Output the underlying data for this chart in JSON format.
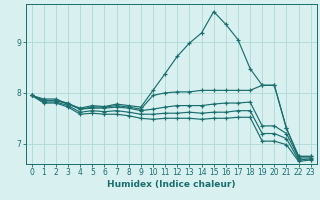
{
  "xlabel": "Humidex (Indice chaleur)",
  "bg_color": "#d8f0f0",
  "grid_color": "#b0d8d8",
  "line_color": "#1a6e6e",
  "xlim": [
    -0.5,
    23.5
  ],
  "ylim": [
    6.6,
    9.75
  ],
  "yticks": [
    7,
    8,
    9
  ],
  "xticks": [
    0,
    1,
    2,
    3,
    4,
    5,
    6,
    7,
    8,
    9,
    10,
    11,
    12,
    13,
    14,
    15,
    16,
    17,
    18,
    19,
    20,
    21,
    22,
    23
  ],
  "lines": [
    {
      "x": [
        0,
        1,
        2,
        3,
        4,
        5,
        6,
        7,
        8,
        9,
        10,
        11,
        12,
        13,
        14,
        15,
        16,
        17,
        18,
        19,
        20,
        21,
        22,
        23
      ],
      "y": [
        7.95,
        7.88,
        7.88,
        7.78,
        7.7,
        7.75,
        7.73,
        7.78,
        7.75,
        7.72,
        8.05,
        8.38,
        8.72,
        8.98,
        9.18,
        9.6,
        9.35,
        9.05,
        8.48,
        8.15,
        8.15,
        7.3,
        6.75,
        6.75
      ]
    },
    {
      "x": [
        0,
        1,
        2,
        3,
        4,
        5,
        6,
        7,
        8,
        9,
        10,
        11,
        12,
        13,
        14,
        15,
        16,
        17,
        18,
        19,
        20,
        21,
        22,
        23
      ],
      "y": [
        7.95,
        7.85,
        7.85,
        7.78,
        7.68,
        7.72,
        7.72,
        7.75,
        7.72,
        7.68,
        7.95,
        8.0,
        8.02,
        8.02,
        8.05,
        8.05,
        8.05,
        8.05,
        8.05,
        8.15,
        8.15,
        7.3,
        6.75,
        6.75
      ]
    },
    {
      "x": [
        0,
        1,
        2,
        3,
        4,
        5,
        6,
        7,
        8,
        9,
        10,
        11,
        12,
        13,
        14,
        15,
        16,
        17,
        18,
        19,
        20,
        21,
        22,
        23
      ],
      "y": [
        7.95,
        7.85,
        7.85,
        7.8,
        7.68,
        7.7,
        7.7,
        7.72,
        7.7,
        7.65,
        7.68,
        7.72,
        7.75,
        7.75,
        7.75,
        7.78,
        7.8,
        7.8,
        7.82,
        7.35,
        7.35,
        7.2,
        6.72,
        6.72
      ]
    },
    {
      "x": [
        0,
        1,
        2,
        3,
        4,
        5,
        6,
        7,
        8,
        9,
        10,
        11,
        12,
        13,
        14,
        15,
        16,
        17,
        18,
        19,
        20,
        21,
        22,
        23
      ],
      "y": [
        7.95,
        7.82,
        7.82,
        7.75,
        7.62,
        7.65,
        7.63,
        7.65,
        7.62,
        7.58,
        7.58,
        7.6,
        7.6,
        7.62,
        7.6,
        7.62,
        7.62,
        7.65,
        7.65,
        7.2,
        7.2,
        7.1,
        6.68,
        6.7
      ]
    },
    {
      "x": [
        0,
        1,
        2,
        3,
        4,
        5,
        6,
        7,
        8,
        9,
        10,
        11,
        12,
        13,
        14,
        15,
        16,
        17,
        18,
        19,
        20,
        21,
        22,
        23
      ],
      "y": [
        7.95,
        7.8,
        7.8,
        7.72,
        7.58,
        7.6,
        7.58,
        7.58,
        7.55,
        7.5,
        7.48,
        7.5,
        7.5,
        7.5,
        7.48,
        7.5,
        7.5,
        7.52,
        7.52,
        7.05,
        7.05,
        6.98,
        6.65,
        6.68
      ]
    }
  ]
}
